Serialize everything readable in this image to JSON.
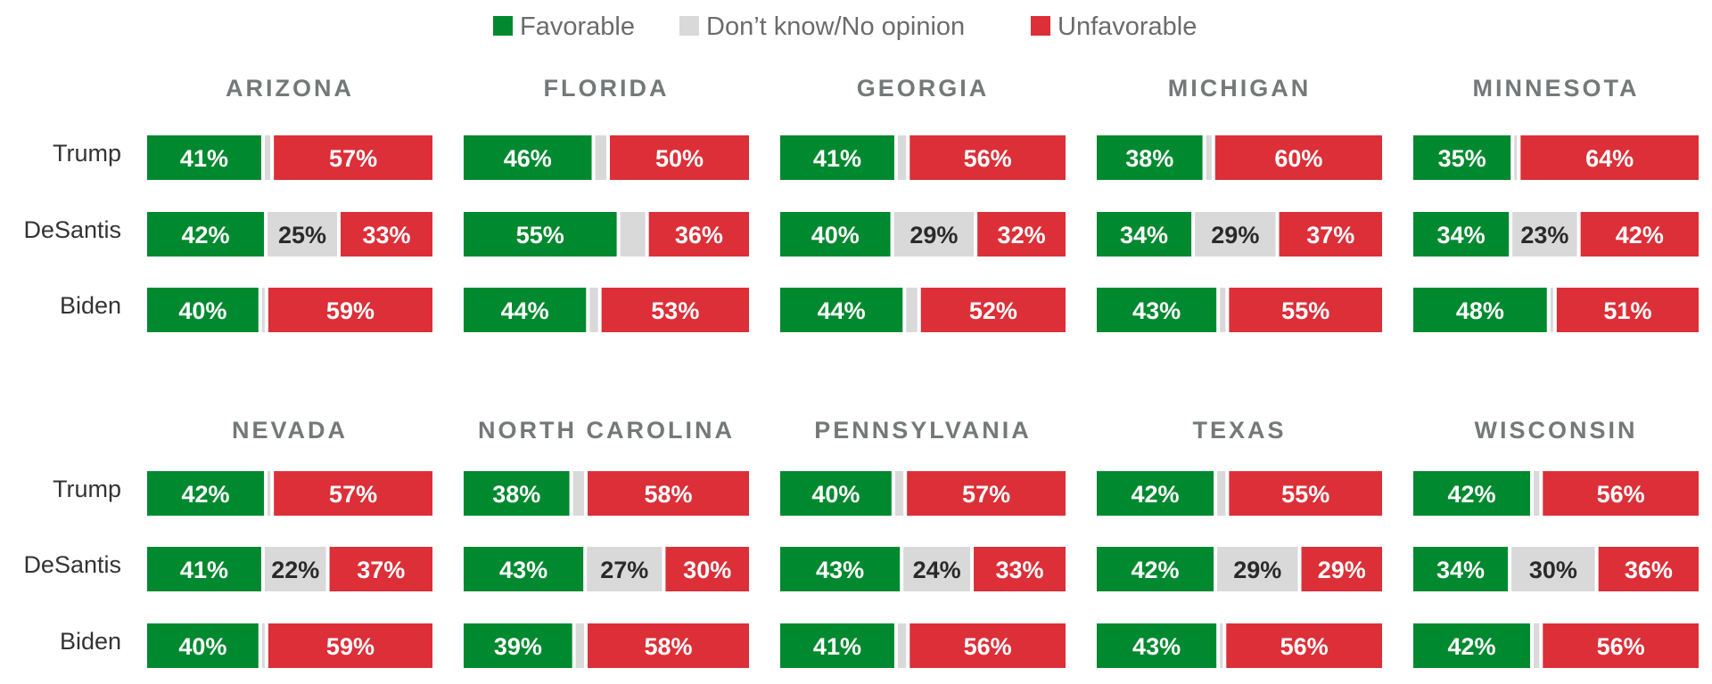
{
  "chart_data": {
    "type": "bar",
    "stacked": true,
    "orientation": "horizontal",
    "xlim": [
      0,
      100
    ],
    "legend": {
      "placement": "top-center",
      "entries": [
        {
          "key": "fav",
          "label": "Favorable",
          "color": "#00892f"
        },
        {
          "key": "dk",
          "label": "Don’t know/No opinion",
          "color": "#d8d9d8"
        },
        {
          "key": "unfav",
          "label": "Unfavorable",
          "color": "#dc2f38"
        }
      ]
    },
    "segment_label_colors": {
      "fav": "#ffffff",
      "dk": "#2a2a2a",
      "unfav": "#ffffff"
    },
    "row_labels": [
      "Trump",
      "DeSantis",
      "Biden"
    ],
    "panels": [
      {
        "title": "ARIZONA",
        "rows": [
          {
            "label": "Trump",
            "fav": 41,
            "dk": 2,
            "unfav": 57,
            "fav_text": "41%",
            "dk_text": "",
            "unfav_text": "57%"
          },
          {
            "label": "DeSantis",
            "fav": 42,
            "dk": 25,
            "unfav": 33,
            "fav_text": "42%",
            "dk_text": "25%",
            "unfav_text": "33%"
          },
          {
            "label": "Biden",
            "fav": 40,
            "dk": 1,
            "unfav": 59,
            "fav_text": "40%",
            "dk_text": "",
            "unfav_text": "59%"
          }
        ]
      },
      {
        "title": "FLORIDA",
        "rows": [
          {
            "label": "Trump",
            "fav": 46,
            "dk": 4,
            "unfav": 50,
            "fav_text": "46%",
            "dk_text": "",
            "unfav_text": "50%"
          },
          {
            "label": "DeSantis",
            "fav": 55,
            "dk": 9,
            "unfav": 36,
            "fav_text": "55%",
            "dk_text": "",
            "unfav_text": "36%"
          },
          {
            "label": "Biden",
            "fav": 44,
            "dk": 3,
            "unfav": 53,
            "fav_text": "44%",
            "dk_text": "",
            "unfav_text": "53%"
          }
        ]
      },
      {
        "title": "GEORGIA",
        "rows": [
          {
            "label": "Trump",
            "fav": 41,
            "dk": 3,
            "unfav": 56,
            "fav_text": "41%",
            "dk_text": "",
            "unfav_text": "56%"
          },
          {
            "label": "DeSantis",
            "fav": 40,
            "dk": 29,
            "unfav": 32,
            "fav_text": "40%",
            "dk_text": "29%",
            "unfav_text": "32%"
          },
          {
            "label": "Biden",
            "fav": 44,
            "dk": 4,
            "unfav": 52,
            "fav_text": "44%",
            "dk_text": "",
            "unfav_text": "52%"
          }
        ]
      },
      {
        "title": "MICHIGAN",
        "rows": [
          {
            "label": "Trump",
            "fav": 38,
            "dk": 2,
            "unfav": 60,
            "fav_text": "38%",
            "dk_text": "",
            "unfav_text": "60%"
          },
          {
            "label": "DeSantis",
            "fav": 34,
            "dk": 29,
            "unfav": 37,
            "fav_text": "34%",
            "dk_text": "29%",
            "unfav_text": "37%"
          },
          {
            "label": "Biden",
            "fav": 43,
            "dk": 2,
            "unfav": 55,
            "fav_text": "43%",
            "dk_text": "",
            "unfav_text": "55%"
          }
        ]
      },
      {
        "title": "MINNESOTA",
        "rows": [
          {
            "label": "Trump",
            "fav": 35,
            "dk": 1,
            "unfav": 64,
            "fav_text": "35%",
            "dk_text": "",
            "unfav_text": "64%"
          },
          {
            "label": "DeSantis",
            "fav": 34,
            "dk": 23,
            "unfav": 42,
            "fav_text": "34%",
            "dk_text": "23%",
            "unfav_text": "42%"
          },
          {
            "label": "Biden",
            "fav": 48,
            "dk": 1,
            "unfav": 51,
            "fav_text": "48%",
            "dk_text": "",
            "unfav_text": "51%"
          }
        ]
      },
      {
        "title": "NEVADA",
        "rows": [
          {
            "label": "Trump",
            "fav": 42,
            "dk": 1,
            "unfav": 57,
            "fav_text": "42%",
            "dk_text": "",
            "unfav_text": "57%"
          },
          {
            "label": "DeSantis",
            "fav": 41,
            "dk": 22,
            "unfav": 37,
            "fav_text": "41%",
            "dk_text": "22%",
            "unfav_text": "37%"
          },
          {
            "label": "Biden",
            "fav": 40,
            "dk": 1,
            "unfav": 59,
            "fav_text": "40%",
            "dk_text": "",
            "unfav_text": "59%"
          }
        ]
      },
      {
        "title": "NORTH CAROLINA",
        "rows": [
          {
            "label": "Trump",
            "fav": 38,
            "dk": 4,
            "unfav": 58,
            "fav_text": "38%",
            "dk_text": "",
            "unfav_text": "58%"
          },
          {
            "label": "DeSantis",
            "fav": 43,
            "dk": 27,
            "unfav": 30,
            "fav_text": "43%",
            "dk_text": "27%",
            "unfav_text": "30%"
          },
          {
            "label": "Biden",
            "fav": 39,
            "dk": 3,
            "unfav": 58,
            "fav_text": "39%",
            "dk_text": "",
            "unfav_text": "58%"
          }
        ]
      },
      {
        "title": "PENNSYLVANIA",
        "rows": [
          {
            "label": "Trump",
            "fav": 40,
            "dk": 3,
            "unfav": 57,
            "fav_text": "40%",
            "dk_text": "",
            "unfav_text": "57%"
          },
          {
            "label": "DeSantis",
            "fav": 43,
            "dk": 24,
            "unfav": 33,
            "fav_text": "43%",
            "dk_text": "24%",
            "unfav_text": "33%"
          },
          {
            "label": "Biden",
            "fav": 41,
            "dk": 3,
            "unfav": 56,
            "fav_text": "41%",
            "dk_text": "",
            "unfav_text": "56%"
          }
        ]
      },
      {
        "title": "TEXAS",
        "rows": [
          {
            "label": "Trump",
            "fav": 42,
            "dk": 3,
            "unfav": 55,
            "fav_text": "42%",
            "dk_text": "",
            "unfav_text": "55%"
          },
          {
            "label": "DeSantis",
            "fav": 42,
            "dk": 29,
            "unfav": 29,
            "fav_text": "42%",
            "dk_text": "29%",
            "unfav_text": "29%"
          },
          {
            "label": "Biden",
            "fav": 43,
            "dk": 1,
            "unfav": 56,
            "fav_text": "43%",
            "dk_text": "",
            "unfav_text": "56%"
          }
        ]
      },
      {
        "title": "WISCONSIN",
        "rows": [
          {
            "label": "Trump",
            "fav": 42,
            "dk": 2,
            "unfav": 56,
            "fav_text": "42%",
            "dk_text": "",
            "unfav_text": "56%"
          },
          {
            "label": "DeSantis",
            "fav": 34,
            "dk": 30,
            "unfav": 36,
            "fav_text": "34%",
            "dk_text": "30%",
            "unfav_text": "36%"
          },
          {
            "label": "Biden",
            "fav": 42,
            "dk": 2,
            "unfav": 56,
            "fav_text": "42%",
            "dk_text": "",
            "unfav_text": "56%"
          }
        ]
      }
    ]
  }
}
